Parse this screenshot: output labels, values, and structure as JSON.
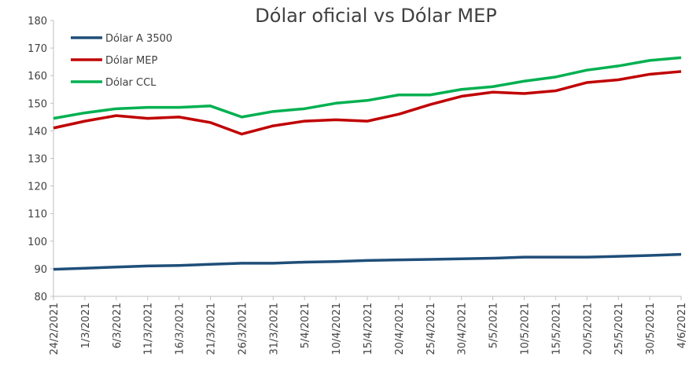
{
  "chart_data": {
    "type": "line",
    "title": "Dólar oficial vs Dólar MEP",
    "categories": [
      "24/2/2021",
      "1/3/2021",
      "6/3/2021",
      "11/3/2021",
      "16/3/2021",
      "21/3/2021",
      "26/3/2021",
      "31/3/2021",
      "5/4/2021",
      "10/4/2021",
      "15/4/2021",
      "20/4/2021",
      "25/4/2021",
      "30/4/2021",
      "5/5/2021",
      "10/5/2021",
      "15/5/2021",
      "20/5/2021",
      "25/5/2021",
      "30/5/2021",
      "4/6/2021"
    ],
    "series": [
      {
        "name": "Dólar A 3500",
        "color": "#1f4e79",
        "values": [
          89.8,
          90.2,
          90.6,
          91,
          91.2,
          91.6,
          92,
          92,
          92.4,
          92.6,
          93,
          93.2,
          93.4,
          93.6,
          93.8,
          94.2,
          94.2,
          94.2,
          94.5,
          94.8,
          95.2
        ]
      },
      {
        "name": "Dólar MEP",
        "color": "#c00000",
        "values": [
          141,
          143.5,
          145.5,
          144.5,
          145,
          143,
          138.8,
          141.8,
          143.5,
          144,
          143.5,
          146,
          149.5,
          152.5,
          154,
          153.5,
          154.5,
          157.5,
          158.5,
          160.5,
          161.5
        ]
      },
      {
        "name": "Dólar CCL",
        "color": "#00b050",
        "values": [
          144.5,
          146.5,
          148,
          148.5,
          148.5,
          149,
          145,
          147,
          148,
          150,
          151,
          153,
          153,
          155,
          156,
          158,
          159.5,
          162,
          163.5,
          165.5,
          166.5
        ]
      }
    ],
    "ylim": [
      80,
      180
    ],
    "yticks": [
      80,
      90,
      100,
      110,
      120,
      130,
      140,
      150,
      160,
      170,
      180
    ],
    "legend": "top-left"
  }
}
